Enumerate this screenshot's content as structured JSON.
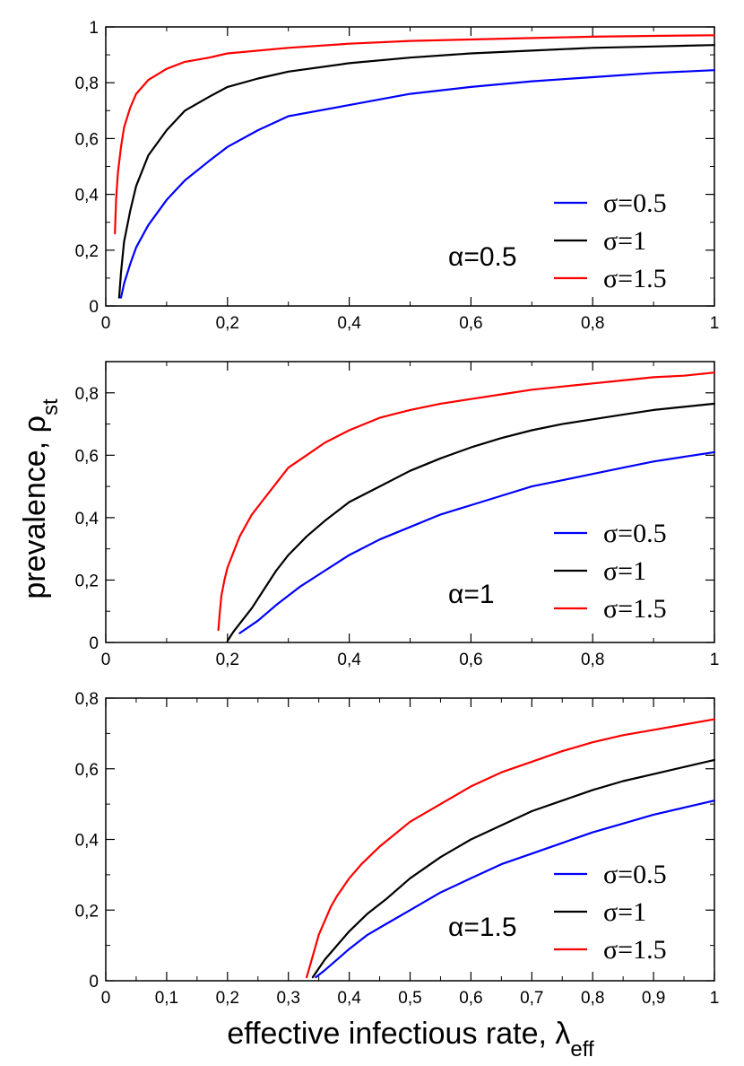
{
  "figure": {
    "ylabel_main": "prevalence, ρ",
    "ylabel_sub": "st",
    "xlabel_main": "effective infectious rate, λ",
    "xlabel_sub": "eff"
  },
  "chart_data": [
    {
      "type": "line",
      "panel": "top",
      "annotation": "α=0.5",
      "xlim": [
        0,
        1
      ],
      "ylim": [
        0,
        1
      ],
      "xticks": [
        0,
        0.2,
        0.4,
        0.6,
        0.8,
        1
      ],
      "xtick_labels": [
        "0",
        "0,2",
        "0,4",
        "0,6",
        "0,8",
        "1"
      ],
      "yticks": [
        0,
        0.2,
        0.4,
        0.6,
        0.8,
        1
      ],
      "ytick_labels": [
        "0",
        "0,2",
        "0,4",
        "0,6",
        "0,8",
        "1"
      ],
      "legend_position": "lower-right",
      "series": [
        {
          "name": "σ=0.5",
          "color": "#0000ff",
          "x": [
            0.025,
            0.03,
            0.04,
            0.05,
            0.07,
            0.1,
            0.13,
            0.17,
            0.2,
            0.25,
            0.3,
            0.4,
            0.5,
            0.6,
            0.7,
            0.8,
            0.9,
            1.0
          ],
          "y": [
            0.03,
            0.08,
            0.15,
            0.21,
            0.29,
            0.38,
            0.45,
            0.52,
            0.57,
            0.63,
            0.68,
            0.72,
            0.76,
            0.785,
            0.805,
            0.82,
            0.835,
            0.845
          ]
        },
        {
          "name": "σ=1",
          "color": "#000000",
          "x": [
            0.022,
            0.025,
            0.03,
            0.04,
            0.05,
            0.07,
            0.1,
            0.13,
            0.17,
            0.2,
            0.25,
            0.3,
            0.4,
            0.5,
            0.6,
            0.7,
            0.8,
            0.9,
            1.0
          ],
          "y": [
            0.03,
            0.12,
            0.23,
            0.34,
            0.43,
            0.54,
            0.63,
            0.7,
            0.75,
            0.785,
            0.815,
            0.84,
            0.87,
            0.89,
            0.905,
            0.915,
            0.925,
            0.93,
            0.935
          ]
        },
        {
          "name": "σ=1.5",
          "color": "#ff0000",
          "x": [
            0.015,
            0.017,
            0.02,
            0.025,
            0.03,
            0.04,
            0.05,
            0.07,
            0.1,
            0.13,
            0.17,
            0.2,
            0.3,
            0.4,
            0.5,
            0.6,
            0.7,
            0.8,
            0.9,
            1.0
          ],
          "y": [
            0.26,
            0.38,
            0.48,
            0.57,
            0.64,
            0.71,
            0.76,
            0.81,
            0.85,
            0.875,
            0.89,
            0.905,
            0.925,
            0.94,
            0.95,
            0.955,
            0.96,
            0.965,
            0.968,
            0.97
          ]
        }
      ]
    },
    {
      "type": "line",
      "panel": "middle",
      "annotation": "α=1",
      "xlim": [
        0,
        1
      ],
      "ylim": [
        0,
        0.9
      ],
      "xticks": [
        0,
        0.2,
        0.4,
        0.6,
        0.8,
        1
      ],
      "xtick_labels": [
        "0",
        "0,2",
        "0,4",
        "0,6",
        "0,8",
        "1"
      ],
      "yticks": [
        0,
        0.2,
        0.4,
        0.6,
        0.8
      ],
      "ytick_labels": [
        "0",
        "0,2",
        "0,4",
        "0,6",
        "0,8"
      ],
      "legend_position": "lower-right",
      "series": [
        {
          "name": "σ=0.5",
          "color": "#0000ff",
          "x": [
            0.22,
            0.25,
            0.28,
            0.32,
            0.36,
            0.4,
            0.45,
            0.5,
            0.55,
            0.6,
            0.65,
            0.7,
            0.75,
            0.8,
            0.85,
            0.9,
            0.95,
            1.0
          ],
          "y": [
            0.03,
            0.07,
            0.12,
            0.18,
            0.23,
            0.28,
            0.33,
            0.37,
            0.41,
            0.44,
            0.47,
            0.5,
            0.52,
            0.54,
            0.56,
            0.58,
            0.595,
            0.61
          ]
        },
        {
          "name": "σ=1",
          "color": "#000000",
          "x": [
            0.2,
            0.205,
            0.21,
            0.22,
            0.24,
            0.26,
            0.28,
            0.3,
            0.33,
            0.36,
            0.4,
            0.45,
            0.5,
            0.55,
            0.6,
            0.65,
            0.7,
            0.75,
            0.8,
            0.85,
            0.9,
            0.95,
            1.0
          ],
          "y": [
            0.005,
            0.02,
            0.035,
            0.06,
            0.11,
            0.17,
            0.23,
            0.28,
            0.34,
            0.39,
            0.45,
            0.5,
            0.55,
            0.59,
            0.625,
            0.655,
            0.68,
            0.7,
            0.715,
            0.73,
            0.745,
            0.755,
            0.765
          ]
        },
        {
          "name": "σ=1.5",
          "color": "#ff0000",
          "x": [
            0.185,
            0.187,
            0.19,
            0.195,
            0.2,
            0.21,
            0.22,
            0.24,
            0.26,
            0.28,
            0.3,
            0.33,
            0.36,
            0.4,
            0.45,
            0.5,
            0.55,
            0.6,
            0.65,
            0.7,
            0.75,
            0.8,
            0.85,
            0.9,
            0.95,
            1.0
          ],
          "y": [
            0.04,
            0.09,
            0.15,
            0.2,
            0.24,
            0.29,
            0.34,
            0.41,
            0.46,
            0.51,
            0.56,
            0.6,
            0.64,
            0.68,
            0.72,
            0.745,
            0.765,
            0.78,
            0.795,
            0.81,
            0.82,
            0.83,
            0.84,
            0.85,
            0.855,
            0.865
          ]
        }
      ]
    },
    {
      "type": "line",
      "panel": "bottom",
      "annotation": "α=1.5",
      "xlim": [
        0,
        1
      ],
      "ylim": [
        0,
        0.8
      ],
      "xticks": [
        0,
        0.1,
        0.2,
        0.3,
        0.4,
        0.5,
        0.6,
        0.7,
        0.8,
        0.9,
        1
      ],
      "xtick_labels": [
        "0",
        "0,1",
        "0,2",
        "0,3",
        "0,4",
        "0,5",
        "0,6",
        "0,7",
        "0,8",
        "0,9",
        "1"
      ],
      "yticks": [
        0,
        0.2,
        0.4,
        0.6,
        0.8
      ],
      "ytick_labels": [
        "0",
        "0,2",
        "0,4",
        "0,6",
        "0,8"
      ],
      "legend_position": "lower-right",
      "series": [
        {
          "name": "σ=0.5",
          "color": "#0000ff",
          "x": [
            0.345,
            0.36,
            0.38,
            0.4,
            0.43,
            0.46,
            0.5,
            0.55,
            0.6,
            0.65,
            0.7,
            0.75,
            0.8,
            0.85,
            0.9,
            0.95,
            1.0
          ],
          "y": [
            0.01,
            0.03,
            0.06,
            0.09,
            0.13,
            0.16,
            0.2,
            0.25,
            0.29,
            0.33,
            0.36,
            0.39,
            0.42,
            0.445,
            0.47,
            0.49,
            0.51
          ]
        },
        {
          "name": "σ=1",
          "color": "#000000",
          "x": [
            0.34,
            0.35,
            0.36,
            0.37,
            0.38,
            0.4,
            0.43,
            0.46,
            0.5,
            0.55,
            0.6,
            0.65,
            0.7,
            0.75,
            0.8,
            0.85,
            0.9,
            0.95,
            1.0
          ],
          "y": [
            0.01,
            0.035,
            0.06,
            0.08,
            0.1,
            0.14,
            0.19,
            0.23,
            0.29,
            0.35,
            0.4,
            0.44,
            0.48,
            0.51,
            0.54,
            0.565,
            0.585,
            0.605,
            0.625
          ]
        },
        {
          "name": "σ=1.5",
          "color": "#ff0000",
          "x": [
            0.33,
            0.335,
            0.34,
            0.345,
            0.35,
            0.36,
            0.37,
            0.38,
            0.4,
            0.42,
            0.45,
            0.5,
            0.55,
            0.6,
            0.65,
            0.7,
            0.75,
            0.8,
            0.85,
            0.9,
            0.95,
            1.0
          ],
          "y": [
            0.01,
            0.04,
            0.07,
            0.1,
            0.13,
            0.17,
            0.21,
            0.24,
            0.29,
            0.33,
            0.38,
            0.45,
            0.5,
            0.55,
            0.59,
            0.62,
            0.65,
            0.675,
            0.695,
            0.71,
            0.725,
            0.74
          ]
        }
      ]
    }
  ]
}
